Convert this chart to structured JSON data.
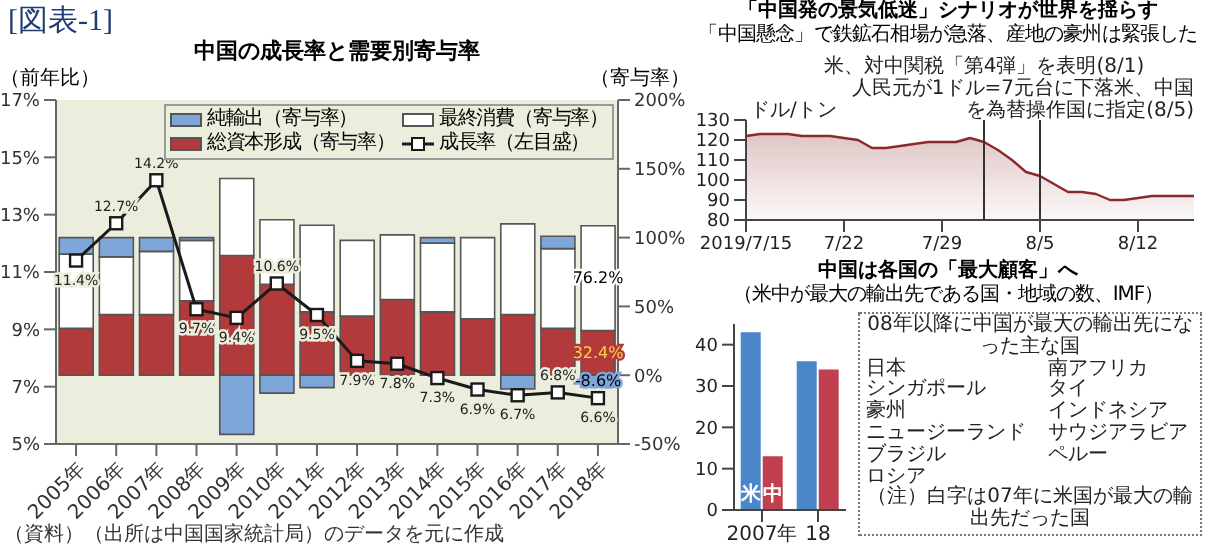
{
  "chart_data": [
    {
      "type": "bar",
      "title": "中国の成長率と需要別寄与率",
      "ylabel": "（前年比）",
      "y2label": "（寄与率）",
      "stacked": true,
      "legend": "top",
      "categories": [
        "2005年",
        "2006年",
        "2007年",
        "2008年",
        "2009年",
        "2010年",
        "2011年",
        "2012年",
        "2013年",
        "2014年",
        "2015年",
        "2016年",
        "2017年",
        "2018年"
      ],
      "series": [
        {
          "name": "総資本形成（寄与率）",
          "color": "#b23a3a",
          "axis": "y2",
          "values": [
            34,
            44,
            44,
            54,
            87,
            66,
            46,
            43,
            55,
            46,
            41,
            44,
            34,
            32.4
          ],
          "value_labels": [
            null,
            null,
            null,
            null,
            null,
            null,
            null,
            null,
            null,
            null,
            null,
            null,
            null,
            "32.4%"
          ]
        },
        {
          "name": "最終消費（寄与率）",
          "color": "#ffffff",
          "axis": "y2",
          "values": [
            54,
            42,
            46,
            44,
            56,
            47,
            63,
            55,
            47,
            50,
            59,
            66,
            58,
            76.2
          ],
          "value_labels": [
            null,
            null,
            null,
            null,
            null,
            null,
            null,
            null,
            null,
            null,
            null,
            null,
            null,
            "76.2%"
          ]
        },
        {
          "name": "純輸出（寄与率）",
          "color": "#7ea6d9",
          "axis": "y2",
          "values": [
            12,
            14,
            10,
            2,
            -43,
            -13,
            -9,
            null,
            null,
            4,
            null,
            -10,
            9,
            -8.6
          ],
          "value_labels": [
            null,
            null,
            null,
            null,
            null,
            null,
            null,
            null,
            null,
            null,
            null,
            null,
            null,
            "-8.6%"
          ]
        },
        {
          "name": "成長率（左目盛）",
          "type": "line",
          "color": "#1a1a1a",
          "marker": "square",
          "values": [
            11.4,
            12.7,
            14.2,
            9.7,
            9.4,
            10.6,
            9.5,
            7.9,
            7.8,
            7.3,
            6.9,
            6.7,
            6.8,
            6.6
          ],
          "value_labels": [
            "11.4%",
            "12.7%",
            "14.2%",
            "9.7%",
            "9.4%",
            "10.6%",
            "9.5%",
            "7.9%",
            "7.8%",
            "7.3%",
            "6.9%",
            "6.7%",
            "6.8%",
            "6.6%"
          ]
        }
      ],
      "ylim": [
        5,
        17
      ],
      "yticks": [
        {
          "value": 5,
          "label": "5%"
        },
        {
          "value": 7,
          "label": "7%"
        },
        {
          "value": 9,
          "label": "9%"
        },
        {
          "value": 11,
          "label": "11%"
        },
        {
          "value": 13,
          "label": "13%"
        },
        {
          "value": 15,
          "label": "15%"
        },
        {
          "value": 17,
          "label": "17%"
        }
      ],
      "y2lim": [
        -50,
        200
      ],
      "y2ticks": [
        {
          "value": -50,
          "label": "-50%"
        },
        {
          "value": 0,
          "label": "0%"
        },
        {
          "value": 50,
          "label": "50%"
        },
        {
          "value": 100,
          "label": "100%"
        },
        {
          "value": 150,
          "label": "150%"
        },
        {
          "value": 200,
          "label": "200%"
        }
      ],
      "annotations": [
        "[図表-1]",
        "（資料）（出所は中国国家統計局）のデータを元に作成"
      ]
    },
    {
      "type": "area",
      "title": "「中国発の景気低迷」シナリオが世界を揺らす",
      "subtitle": "「中国懸念」で鉄鉱石相場が急落、産地の豪州は緊張した",
      "ylabel": "ドル/トン",
      "x": [
        "2019-07-15",
        "2019-07-16",
        "2019-07-18",
        "2019-07-19",
        "2019-07-20",
        "2019-07-21",
        "2019-07-22",
        "2019-07-23",
        "2019-07-24",
        "2019-07-25",
        "2019-07-27",
        "2019-07-28",
        "2019-07-30",
        "2019-07-31",
        "2019-08-01",
        "2019-08-02",
        "2019-08-03",
        "2019-08-04",
        "2019-08-05",
        "2019-08-06",
        "2019-08-07",
        "2019-08-08",
        "2019-08-09",
        "2019-08-10",
        "2019-08-11",
        "2019-08-12",
        "2019-08-13",
        "2019-08-16"
      ],
      "series": [
        {
          "color": "#8c2a2a",
          "values": [
            122,
            123,
            123,
            122,
            122,
            122,
            121,
            120,
            116,
            116,
            118,
            119,
            119,
            121,
            119,
            115,
            110,
            104,
            102,
            98,
            94,
            94,
            93,
            90,
            90,
            91,
            92,
            92
          ]
        }
      ],
      "xlim": [
        "2019-07-15",
        "2019-08-16"
      ],
      "xticks": [
        {
          "value": "2019-07-15",
          "label": "2019/7/15"
        },
        {
          "value": "2019-07-22",
          "label": "7/22"
        },
        {
          "value": "2019-07-29",
          "label": "7/29"
        },
        {
          "value": "2019-08-05",
          "label": "8/5"
        },
        {
          "value": "2019-08-12",
          "label": "8/12"
        }
      ],
      "ylim": [
        80,
        130
      ],
      "yticks": [
        80,
        90,
        100,
        110,
        120,
        130
      ],
      "ref_lines": [
        {
          "axis": "x",
          "value": "2019-08-01",
          "label": "米、対中関税「第4弾」を表明(8/1)",
          "color": "#333333"
        },
        {
          "axis": "x",
          "value": "2019-08-05",
          "label": "人民元が1ドル=7元台に下落米、中国を為替操作国に指定(8/5)",
          "color": "#333333"
        }
      ]
    },
    {
      "type": "bar",
      "title": "中国は各国の「最大顧客」へ",
      "subtitle": "（米中が最大の輸出先である国・地域の数、IMF）",
      "categories": [
        "2007年",
        "18"
      ],
      "series": [
        {
          "name": "米",
          "color": "#4a86c8",
          "values": [
            43,
            36
          ]
        },
        {
          "name": "中",
          "color": "#c1404f",
          "values": [
            13,
            34
          ]
        }
      ],
      "ylim": [
        0,
        45
      ],
      "yticks": [
        0,
        10,
        20,
        30,
        40
      ],
      "annotations": [
        "08年以降に中国が最大の輸出先になった主な国",
        "日本",
        "南アフリカ",
        "シンガポール",
        "タイ",
        "豪州",
        "インドネシア",
        "ニュージーランド",
        "サウジアラビア",
        "ブラジル",
        "ペルー",
        "ロシア",
        "（注）白字は07年に米国が最大の輸出先だった国"
      ]
    }
  ]
}
